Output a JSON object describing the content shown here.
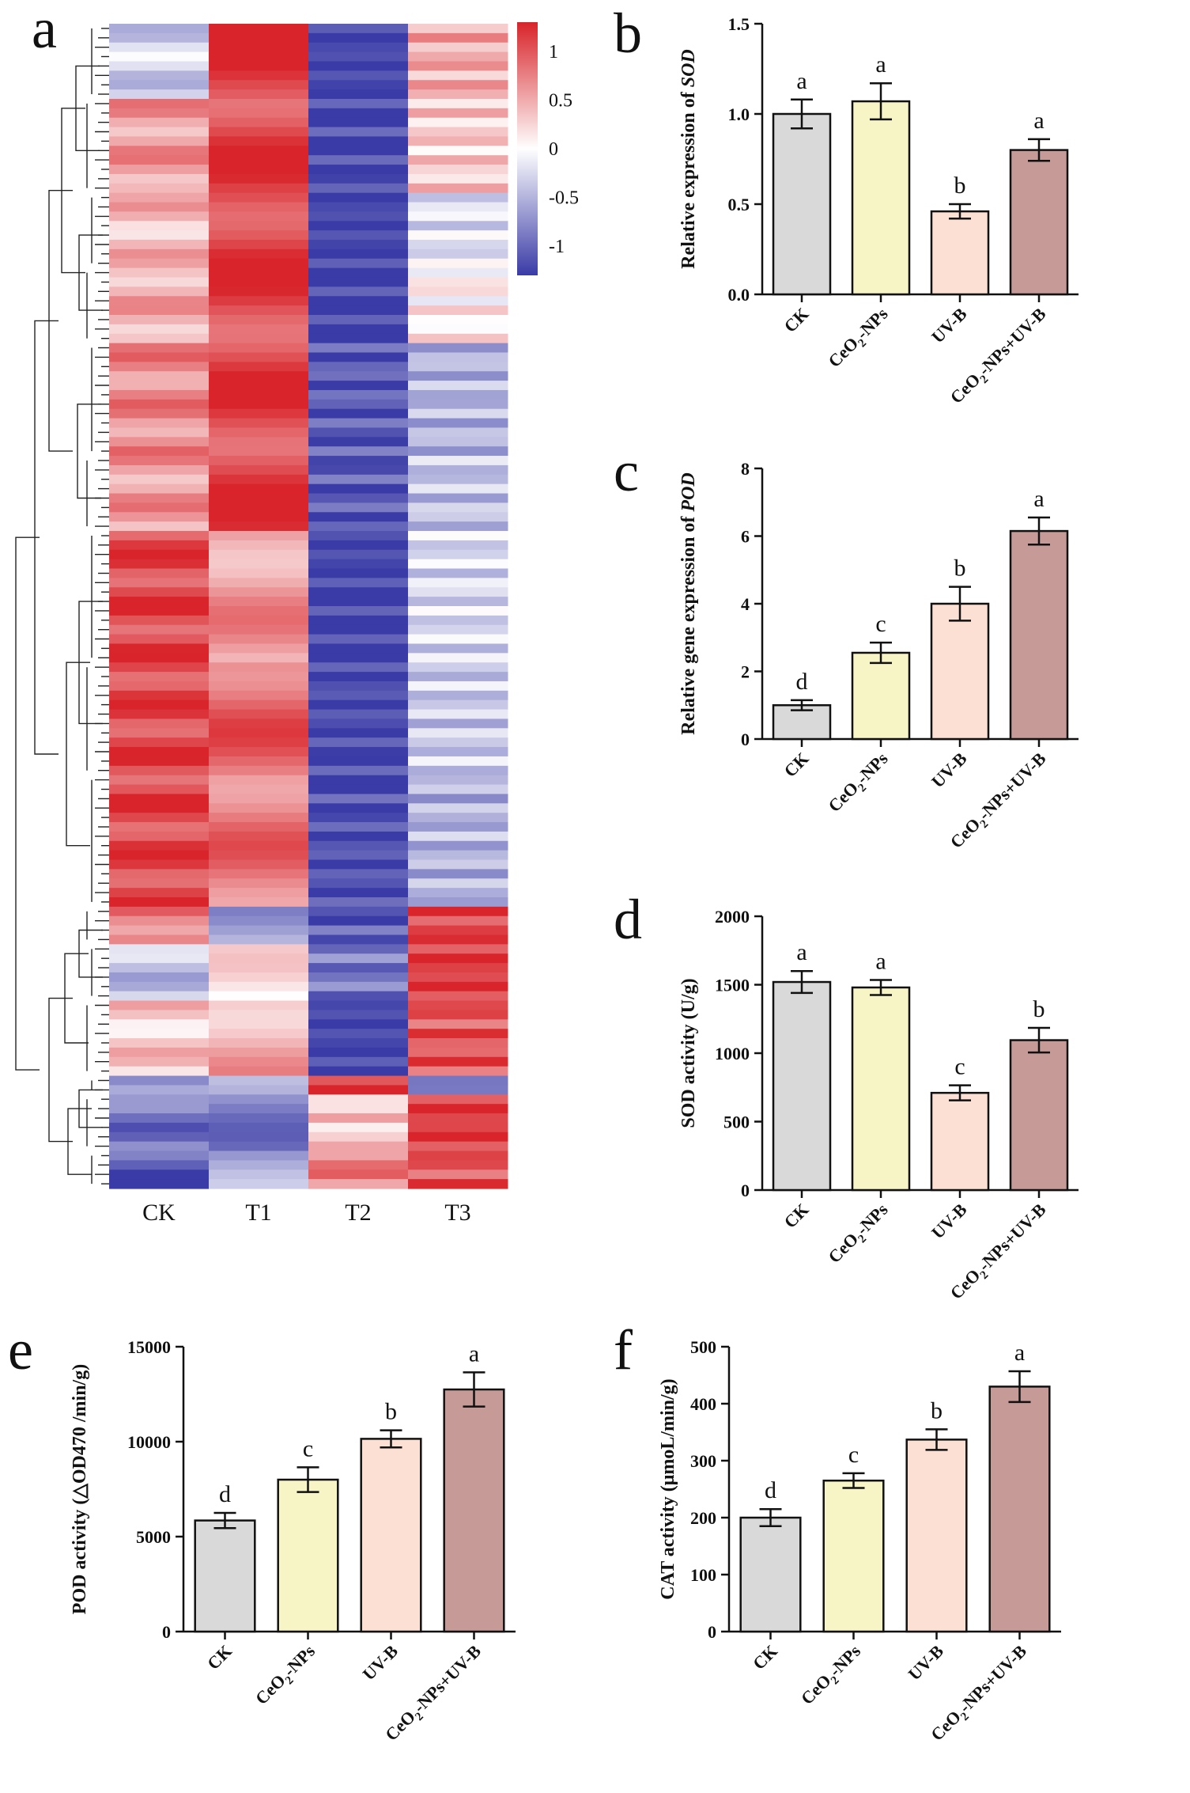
{
  "colors": {
    "ck": "#d9d9d9",
    "ceo2": "#f7f4c6",
    "uvb": "#fde0d4",
    "combo": "#c69a97",
    "heat_low": "#3a3ba6",
    "heat_mid": "#ffffff",
    "heat_high": "#d8242a"
  },
  "chart_data": [
    {
      "panel": "a",
      "type": "heatmap",
      "columns": [
        "CK",
        "T1",
        "T2",
        "T3"
      ],
      "colorbar": {
        "min": -1.3,
        "max": 1.3,
        "ticks": [
          1,
          0.5,
          0,
          -0.5,
          -1
        ],
        "tick_labels": [
          "1",
          "0.5",
          "0",
          "-0.5",
          "-1"
        ]
      },
      "row_groups": [
        {
          "rows": 8,
          "CK": -0.3,
          "T1": 1.2,
          "T2": -1.3,
          "T3": 0.5
        },
        {
          "rows": 10,
          "CK": 0.6,
          "T1": 1.1,
          "T2": -1.25,
          "T3": 0.3
        },
        {
          "rows": 8,
          "CK": 0.4,
          "T1": 1.15,
          "T2": -1.3,
          "T3": -0.2
        },
        {
          "rows": 8,
          "CK": 0.5,
          "T1": 1.1,
          "T2": -1.3,
          "T3": 0.1
        },
        {
          "rows": 12,
          "CK": 0.7,
          "T1": 1.1,
          "T2": -1.1,
          "T3": -0.5
        },
        {
          "rows": 8,
          "CK": 0.6,
          "T1": 1.15,
          "T2": -1.1,
          "T3": -0.4
        },
        {
          "rows": 14,
          "CK": 1.1,
          "T1": 0.6,
          "T2": -1.3,
          "T3": -0.25
        },
        {
          "rows": 12,
          "CK": 1.1,
          "T1": 0.9,
          "T2": -1.25,
          "T3": -0.35
        },
        {
          "rows": 14,
          "CK": 1.1,
          "T1": 0.8,
          "T2": -1.2,
          "T3": -0.5
        },
        {
          "rows": 4,
          "CK": 0.8,
          "T1": -0.6,
          "T2": -1.1,
          "T3": 1.1
        },
        {
          "rows": 6,
          "CK": -0.4,
          "T1": 0.1,
          "T2": -0.9,
          "T3": 1.2
        },
        {
          "rows": 8,
          "CK": 0.3,
          "T1": 0.5,
          "T2": -1.3,
          "T3": 1.0
        },
        {
          "rows": 2,
          "CK": -0.5,
          "T1": -0.7,
          "T2": 1.2,
          "T3": -1.0
        },
        {
          "rows": 6,
          "CK": -0.9,
          "T1": -0.8,
          "T2": 0.3,
          "T3": 1.2
        },
        {
          "rows": 4,
          "CK": -1.1,
          "T1": -0.6,
          "T2": 0.8,
          "T3": 1.0
        }
      ]
    },
    {
      "panel": "b",
      "type": "bar",
      "categories": [
        "CK",
        "CeO2-NPs",
        "UV-B",
        "CeO2-NPs+UV-B"
      ],
      "values": [
        1.0,
        1.07,
        0.46,
        0.8
      ],
      "errors": [
        0.08,
        0.1,
        0.04,
        0.06
      ],
      "letters": [
        "a",
        "a",
        "b",
        "a"
      ],
      "ylabel": "Relative expression of SOD",
      "ylim": [
        0,
        1.5
      ],
      "ticks": [
        0.0,
        0.5,
        1.0,
        1.5
      ],
      "tick_labels": [
        "0.0",
        "0.5",
        "1.0",
        "1.5"
      ]
    },
    {
      "panel": "c",
      "type": "bar",
      "categories": [
        "CK",
        "CeO2-NPs",
        "UV-B",
        "CeO2-NPs+UV-B"
      ],
      "values": [
        1.0,
        2.55,
        4.0,
        6.15
      ],
      "errors": [
        0.15,
        0.3,
        0.5,
        0.4
      ],
      "letters": [
        "d",
        "c",
        "b",
        "a"
      ],
      "ylabel": "Relative gene expression of POD",
      "ylim": [
        0,
        8
      ],
      "ticks": [
        0,
        2,
        4,
        6,
        8
      ],
      "tick_labels": [
        "0",
        "2",
        "4",
        "6",
        "8"
      ]
    },
    {
      "panel": "d",
      "type": "bar",
      "categories": [
        "CK",
        "CeO2-NPs",
        "UV-B",
        "CeO2-NPs+UV-B"
      ],
      "values": [
        1520,
        1480,
        710,
        1095
      ],
      "errors": [
        80,
        55,
        55,
        90
      ],
      "letters": [
        "a",
        "a",
        "c",
        "b"
      ],
      "ylabel": "SOD activity (U/g)",
      "ylim": [
        0,
        2000
      ],
      "ticks": [
        0,
        500,
        1000,
        1500,
        2000
      ],
      "tick_labels": [
        "0",
        "500",
        "1000",
        "1500",
        "2000"
      ]
    },
    {
      "panel": "e",
      "type": "bar",
      "categories": [
        "CK",
        "CeO2-NPs",
        "UV-B",
        "CeO2-NPs+UV-B"
      ],
      "values": [
        5850,
        8000,
        10150,
        12750
      ],
      "errors": [
        400,
        650,
        450,
        900
      ],
      "letters": [
        "d",
        "c",
        "b",
        "a"
      ],
      "ylabel": "POD activity (△OD470 /min/g)",
      "ylim": [
        0,
        15000
      ],
      "ticks": [
        0,
        5000,
        10000,
        15000
      ],
      "tick_labels": [
        "0",
        "5000",
        "10000",
        "15000"
      ]
    },
    {
      "panel": "f",
      "type": "bar",
      "categories": [
        "CK",
        "CeO2-NPs",
        "UV-B",
        "CeO2-NPs+UV-B"
      ],
      "values": [
        200,
        265,
        337,
        430
      ],
      "errors": [
        15,
        13,
        18,
        27
      ],
      "letters": [
        "d",
        "c",
        "b",
        "a"
      ],
      "ylabel": "CAT activity (μmoL/min/g)",
      "ylim": [
        0,
        500
      ],
      "ticks": [
        0,
        100,
        200,
        300,
        400,
        500
      ],
      "tick_labels": [
        "0",
        "100",
        "200",
        "300",
        "400",
        "500"
      ]
    }
  ]
}
